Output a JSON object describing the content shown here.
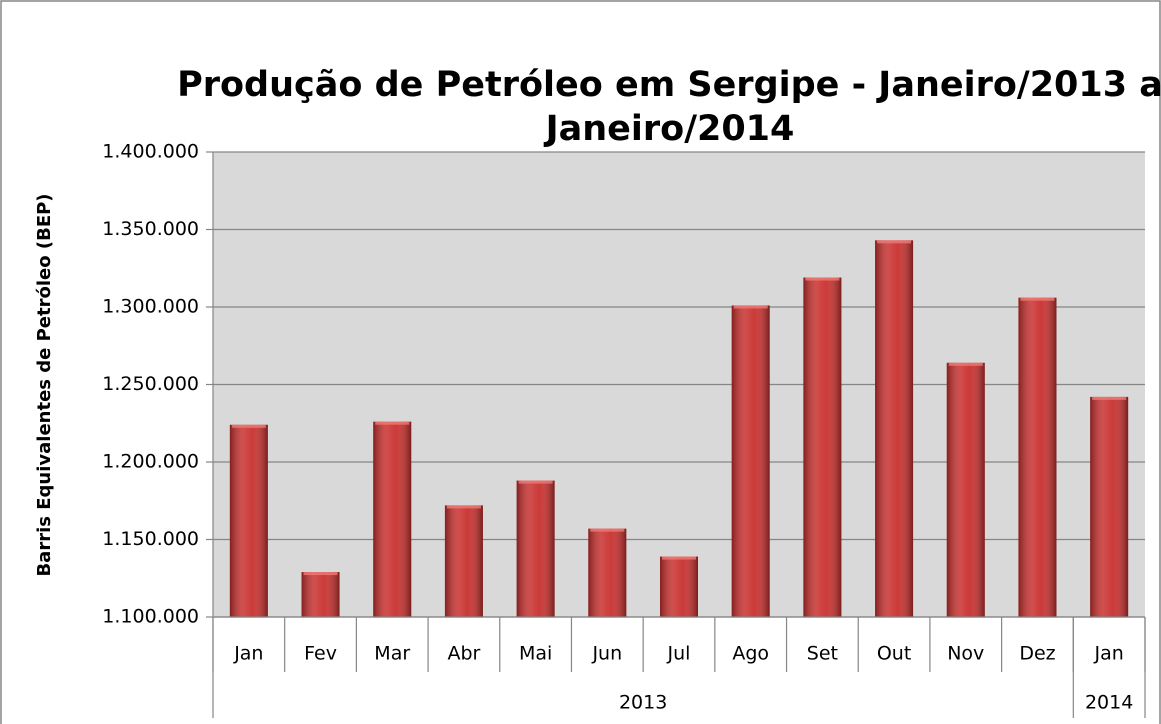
{
  "chart_data": {
    "type": "bar",
    "title": [
      "Produção de Petróleo em Sergipe - Janeiro/2013 a",
      "Janeiro/2014"
    ],
    "y_label": "Barris Equivalentes de Petróleo (BEP)",
    "categories": [
      "Jan",
      "Fev",
      "Mar",
      "Abr",
      "Mai",
      "Jun",
      "Jul",
      "Ago",
      "Set",
      "Out",
      "Nov",
      "Dez",
      "Jan"
    ],
    "groups": [
      {
        "name": "2013",
        "count": 12
      },
      {
        "name": "2014",
        "count": 1
      }
    ],
    "values": [
      1224000,
      1129000,
      1226000,
      1172000,
      1188000,
      1157000,
      1139000,
      1301000,
      1319000,
      1343000,
      1264000,
      1306000,
      1242000
    ],
    "color": "#c8302e",
    "ylim": [
      1100000,
      1400000
    ],
    "yticks": [
      {
        "value": 1100000,
        "label": "1.100.000"
      },
      {
        "value": 1150000,
        "label": "1.150.000"
      },
      {
        "value": 1200000,
        "label": "1.200.000"
      },
      {
        "value": 1250000,
        "label": "1.250.000"
      },
      {
        "value": 1300000,
        "label": "1.300.000"
      },
      {
        "value": 1350000,
        "label": "1.350.000"
      },
      {
        "value": 1400000,
        "label": "1.400.000"
      }
    ],
    "grid": true
  }
}
